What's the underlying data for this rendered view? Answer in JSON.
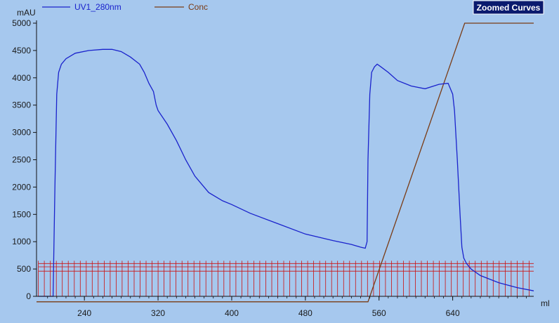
{
  "badge": {
    "label": "Zoomed Curves"
  },
  "colors": {
    "background": "#a6c8ee",
    "uv": "#1a22cc",
    "conc": "#7a3b14",
    "fractions": "#cc1010",
    "axis": "#111111",
    "badge_bg": "#0a1a6e"
  },
  "chart_data": {
    "type": "line",
    "xunit": "ml",
    "yunit": "mAU",
    "xlim": [
      188,
      728
    ],
    "ylim": [
      0,
      5000
    ],
    "x_ticks": [
      240,
      320,
      400,
      480,
      560,
      640
    ],
    "y_ticks": [
      0,
      500,
      1000,
      1500,
      2000,
      2500,
      3000,
      3500,
      4000,
      4500,
      5000
    ],
    "grid": false,
    "legend_position": "top-left",
    "series": [
      {
        "name": "UV1_280nm",
        "x": [
          190,
          206,
          208,
          210,
          212,
          215,
          220,
          230,
          245,
          260,
          270,
          280,
          290,
          300,
          305,
          310,
          315,
          318,
          320,
          330,
          340,
          350,
          360,
          375,
          390,
          400,
          420,
          450,
          480,
          510,
          530,
          540,
          545,
          547,
          548,
          550,
          552,
          555,
          558,
          562,
          570,
          580,
          595,
          610,
          625,
          635,
          640,
          642,
          645,
          648,
          650,
          652,
          655,
          660,
          670,
          690,
          710,
          728
        ],
        "y": [
          0,
          0,
          2000,
          3700,
          4100,
          4250,
          4350,
          4450,
          4500,
          4520,
          4520,
          4480,
          4380,
          4250,
          4100,
          3900,
          3750,
          3500,
          3400,
          3150,
          2850,
          2500,
          2200,
          1900,
          1750,
          1680,
          1520,
          1330,
          1140,
          1020,
          950,
          900,
          880,
          1000,
          2500,
          3700,
          4100,
          4200,
          4250,
          4200,
          4100,
          3950,
          3850,
          3800,
          3880,
          3900,
          3700,
          3400,
          2500,
          1500,
          900,
          700,
          600,
          500,
          380,
          250,
          160,
          100
        ]
      },
      {
        "name": "Conc",
        "x": [
          188,
          548,
          653,
          728
        ],
        "y": [
          -100,
          -100,
          5000,
          5000
        ]
      }
    ],
    "fractions": {
      "start": 190,
      "end": 728,
      "step": 6.5,
      "top": 650
    }
  }
}
